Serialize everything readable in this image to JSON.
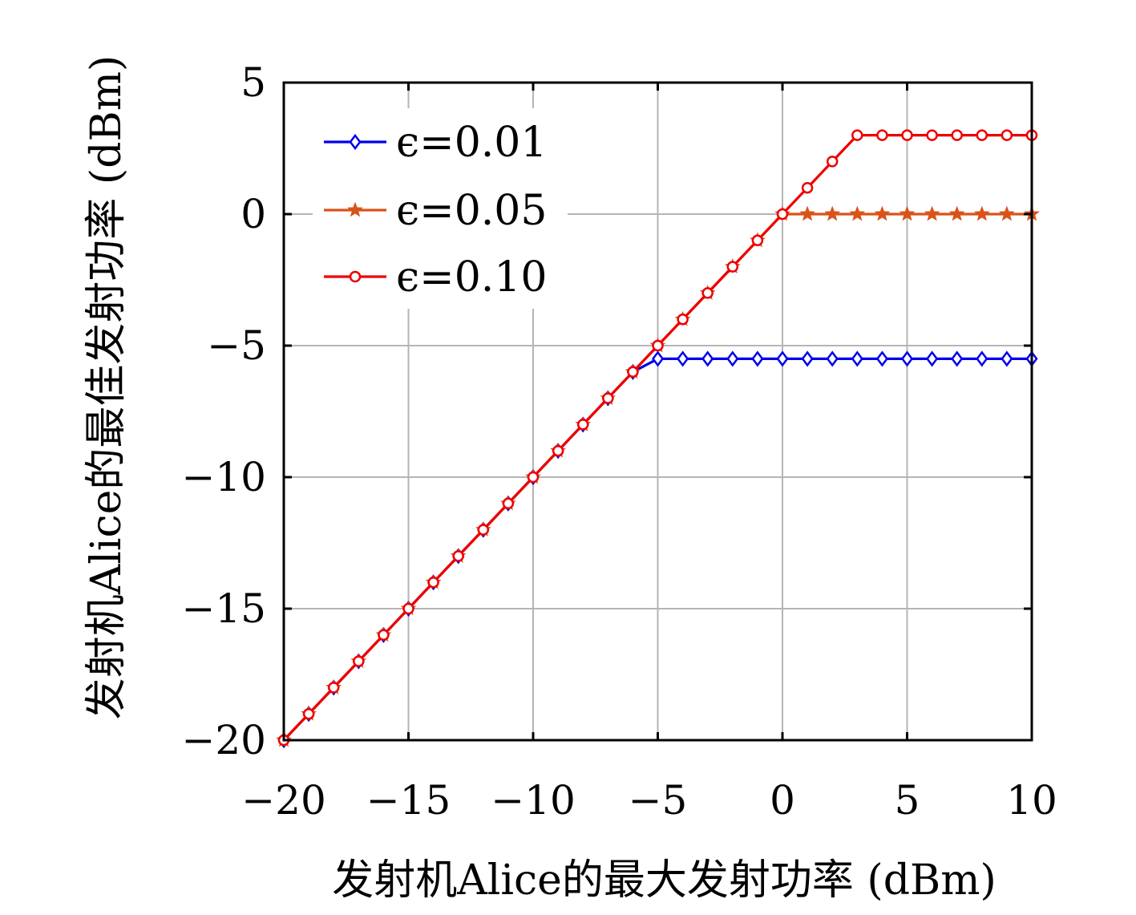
{
  "chart_data": {
    "type": "line",
    "xlabel": "发射机Alice的最大发射功率 (dBm)",
    "ylabel": "发射机Alice的最佳发射功率 (dBm)",
    "xlim": [
      -20,
      10
    ],
    "ylim": [
      -20,
      5
    ],
    "xticks": [
      -20,
      -15,
      -10,
      -5,
      0,
      5,
      10
    ],
    "yticks": [
      -20,
      -15,
      -10,
      -5,
      0,
      5
    ],
    "xtick_labels": [
      "−20",
      "−15",
      "−10",
      "−5",
      "0",
      "5",
      "10"
    ],
    "ytick_labels": [
      "−20",
      "−15",
      "−10",
      "−5",
      "0",
      "5"
    ],
    "grid": true,
    "legend_position": "top-left",
    "x": [
      -20,
      -19,
      -18,
      -17,
      -16,
      -15,
      -14,
      -13,
      -12,
      -11,
      -10,
      -9,
      -8,
      -7,
      -6,
      -5,
      -4,
      -3,
      -2,
      -1,
      0,
      1,
      2,
      3,
      4,
      5,
      6,
      7,
      8,
      9,
      10
    ],
    "series": [
      {
        "name": "ϵ=0.01",
        "color": "#0000ee",
        "marker": "diamond",
        "values": [
          -20,
          -19,
          -18,
          -17,
          -16,
          -15,
          -14,
          -13,
          -12,
          -11,
          -10,
          -9,
          -8,
          -7,
          -6,
          -5.5,
          -5.5,
          -5.5,
          -5.5,
          -5.5,
          -5.5,
          -5.5,
          -5.5,
          -5.5,
          -5.5,
          -5.5,
          -5.5,
          -5.5,
          -5.5,
          -5.5,
          -5.5
        ]
      },
      {
        "name": "ϵ=0.05",
        "color": "#d95319",
        "marker": "star",
        "values": [
          -20,
          -19,
          -18,
          -17,
          -16,
          -15,
          -14,
          -13,
          -12,
          -11,
          -10,
          -9,
          -8,
          -7,
          -6,
          -5,
          -4,
          -3,
          -2,
          -1,
          0,
          0,
          0,
          0,
          0,
          0,
          0,
          0,
          0,
          0,
          0
        ]
      },
      {
        "name": "ϵ=0.10",
        "color": "#ee0000",
        "marker": "circle",
        "values": [
          -20,
          -19,
          -18,
          -17,
          -16,
          -15,
          -14,
          -13,
          -12,
          -11,
          -10,
          -9,
          -8,
          -7,
          -6,
          -5,
          -4,
          -3,
          -2,
          -1,
          0,
          1,
          2,
          3,
          3,
          3,
          3,
          3,
          3,
          3,
          3
        ]
      }
    ]
  }
}
